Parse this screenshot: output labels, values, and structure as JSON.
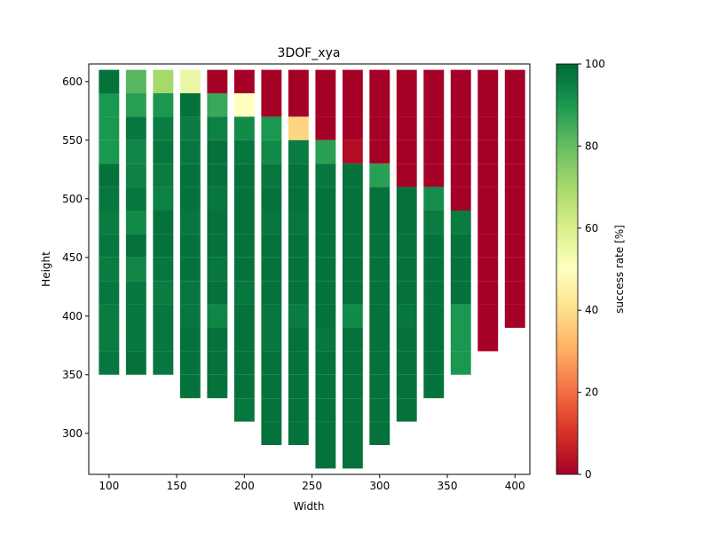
{
  "chart_data": {
    "type": "heatmap",
    "title": "3DOF_xya",
    "xlabel": "Width",
    "ylabel": "Height",
    "xlim": [
      85,
      411
    ],
    "ylim": [
      265,
      615
    ],
    "x_ticks": [
      100,
      150,
      200,
      250,
      300,
      350,
      400
    ],
    "y_ticks": [
      300,
      350,
      400,
      450,
      500,
      550,
      600
    ],
    "cell_width": 15,
    "cell_height": 20,
    "colorbar": {
      "label": "success rate [%]",
      "min": 0,
      "max": 100,
      "ticks": [
        0,
        20,
        40,
        60,
        80,
        100
      ],
      "colormap": "RdYlGn",
      "stops": [
        "#a50026",
        "#d73027",
        "#f46d43",
        "#fdae61",
        "#fee08b",
        "#ffffbf",
        "#d9ef8b",
        "#a6d96a",
        "#66bd63",
        "#1a9850",
        "#006837"
      ]
    },
    "grid": false,
    "x_values": [
      100,
      120,
      140,
      160,
      180,
      200,
      220,
      240,
      260,
      280,
      300,
      320,
      340,
      360,
      380,
      400
    ],
    "rows": [
      {
        "y": 600,
        "x_start": 100,
        "values": [
          98,
          82,
          70,
          55,
          0,
          0,
          0,
          0,
          0,
          0,
          0,
          0,
          0,
          0,
          0,
          0
        ]
      },
      {
        "y": 580,
        "x_start": 100,
        "values": [
          90,
          88,
          90,
          98,
          86,
          50,
          0,
          0,
          0,
          0,
          0,
          0,
          0,
          0,
          0,
          0
        ]
      },
      {
        "y": 560,
        "x_start": 100,
        "values": [
          90,
          97,
          96,
          96,
          95,
          93,
          90,
          38,
          0,
          0,
          0,
          0,
          0,
          0,
          0,
          0
        ]
      },
      {
        "y": 540,
        "x_start": 100,
        "values": [
          90,
          94,
          97,
          97,
          98,
          97,
          93,
          96,
          88,
          3,
          0,
          0,
          0,
          0,
          0,
          0
        ]
      },
      {
        "y": 520,
        "x_start": 100,
        "values": [
          98,
          95,
          96,
          98,
          98,
          98,
          97,
          98,
          97,
          98,
          88,
          0,
          0,
          0,
          0,
          0
        ]
      },
      {
        "y": 500,
        "x_start": 100,
        "values": [
          97,
          97,
          95,
          98,
          97,
          98,
          98,
          98,
          98,
          98,
          98,
          98,
          92,
          0,
          0,
          0
        ]
      },
      {
        "y": 480,
        "x_start": 100,
        "values": [
          96,
          93,
          98,
          97,
          98,
          98,
          97,
          97,
          98,
          98,
          98,
          98,
          96,
          96,
          0,
          0
        ]
      },
      {
        "y": 460,
        "x_start": 100,
        "values": [
          97,
          98,
          98,
          98,
          98,
          98,
          98,
          98,
          98,
          98,
          98,
          98,
          98,
          98,
          0,
          0
        ]
      },
      {
        "y": 440,
        "x_start": 100,
        "values": [
          96,
          94,
          97,
          98,
          97,
          98,
          98,
          98,
          98,
          98,
          98,
          98,
          98,
          98,
          0,
          0
        ]
      },
      {
        "y": 420,
        "x_start": 100,
        "values": [
          97,
          97,
          96,
          97,
          98,
          97,
          98,
          98,
          98,
          98,
          98,
          98,
          98,
          98,
          0,
          0
        ]
      },
      {
        "y": 400,
        "x_start": 100,
        "values": [
          96,
          97,
          97,
          97,
          94,
          98,
          97,
          96,
          98,
          93,
          98,
          97,
          98,
          90,
          0,
          0
        ]
      },
      {
        "y": 380,
        "x_start": 100,
        "values": [
          96,
          97,
          97,
          98,
          98,
          98,
          97,
          98,
          97,
          98,
          98,
          98,
          98,
          90,
          0
        ]
      },
      {
        "y": 360,
        "x_start": 100,
        "values": [
          97,
          98,
          97,
          98,
          98,
          98,
          98,
          98,
          98,
          98,
          98,
          98,
          98,
          90
        ]
      },
      {
        "y": 340,
        "x_start": 160,
        "values": [
          98,
          98,
          98,
          98,
          98,
          98,
          98,
          98,
          98,
          98
        ]
      },
      {
        "y": 320,
        "x_start": 200,
        "values": [
          97,
          98,
          98,
          98,
          98,
          98,
          98
        ]
      },
      {
        "y": 300,
        "x_start": 220,
        "values": [
          98,
          98,
          98,
          98,
          98
        ]
      },
      {
        "y": 280,
        "x_start": 260,
        "values": [
          98,
          98
        ]
      }
    ]
  }
}
